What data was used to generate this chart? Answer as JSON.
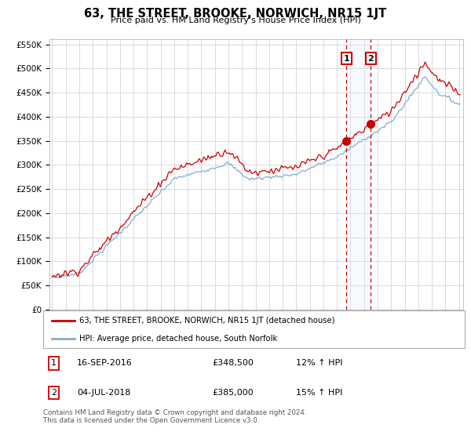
{
  "title": "63, THE STREET, BROOKE, NORWICH, NR15 1JT",
  "subtitle": "Price paid vs. HM Land Registry's House Price Index (HPI)",
  "legend_line1": "63, THE STREET, BROOKE, NORWICH, NR15 1JT (detached house)",
  "legend_line2": "HPI: Average price, detached house, South Norfolk",
  "transaction1_label": "1",
  "transaction1_date": "16-SEP-2016",
  "transaction1_price": "£348,500",
  "transaction1_hpi": "12% ↑ HPI",
  "transaction1_year": 2016.71,
  "transaction2_label": "2",
  "transaction2_date": "04-JUL-2018",
  "transaction2_price": "£385,000",
  "transaction2_hpi": "15% ↑ HPI",
  "transaction2_year": 2018.5,
  "red_color": "#cc0000",
  "blue_color": "#7eadd4",
  "shade_color": "#ddeeff",
  "footer": "Contains HM Land Registry data © Crown copyright and database right 2024.\nThis data is licensed under the Open Government Licence v3.0.",
  "ylim_min": 0,
  "ylim_max": 560000,
  "xlim_min": 1994.8,
  "xlim_max": 2025.3
}
